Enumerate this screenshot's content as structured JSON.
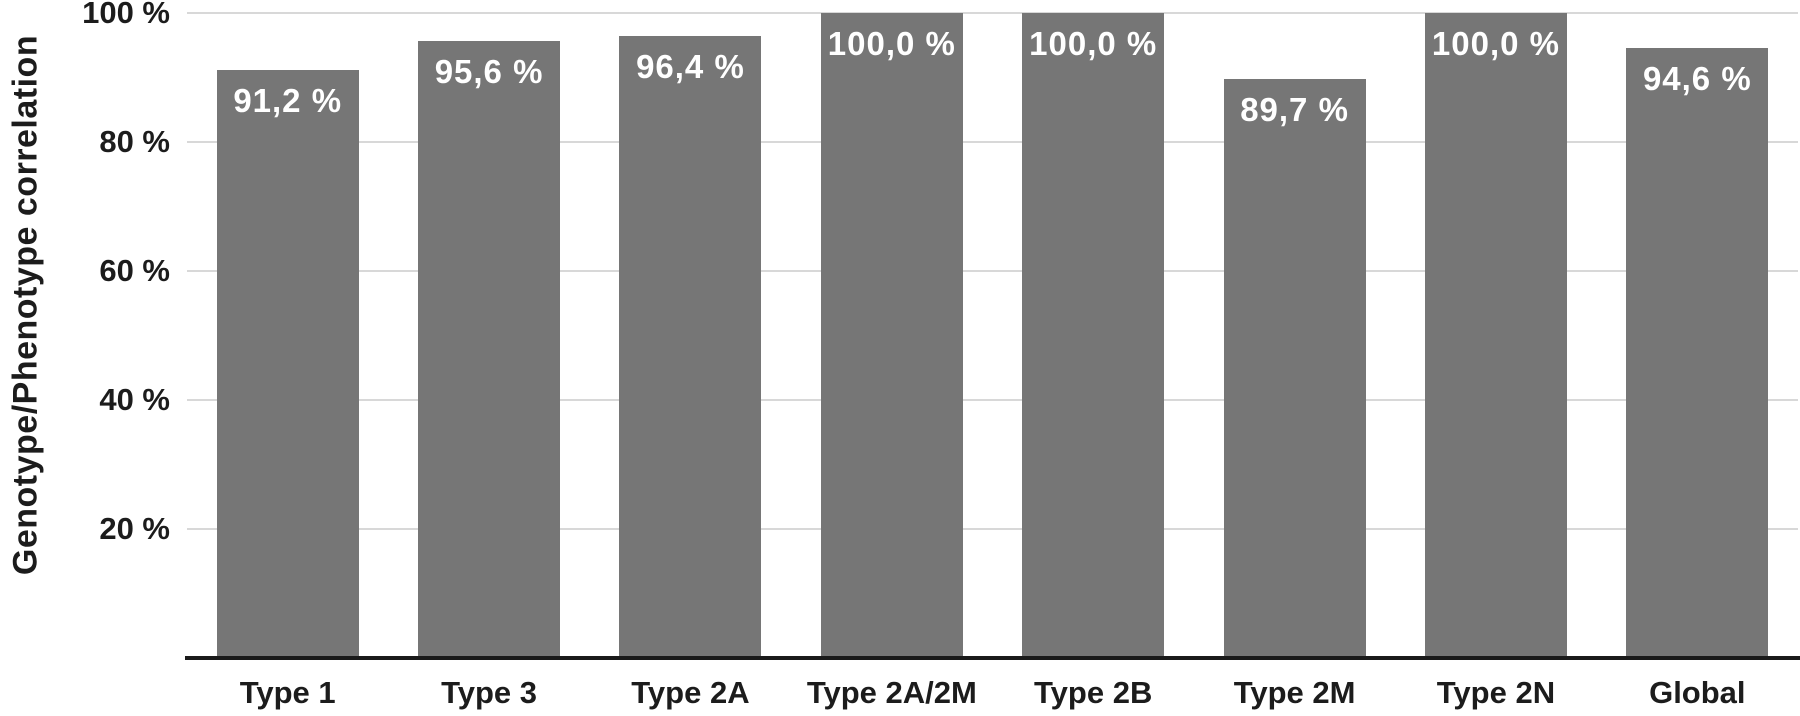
{
  "chart_data": {
    "type": "bar",
    "title": "",
    "categories": [
      "Type 1",
      "Type 3",
      "Type 2A",
      "Type 2A/2M",
      "Type 2B",
      "Type 2M",
      "Type 2N",
      "Global"
    ],
    "values": [
      91.2,
      95.6,
      96.4,
      100.0,
      100.0,
      89.7,
      100.0,
      94.6
    ],
    "value_labels": [
      "91,2 %",
      "95,6 %",
      "96,4 %",
      "100,0 %",
      "100,0 %",
      "89,7 %",
      "100,0 %",
      "94,6 %"
    ],
    "xlabel": "",
    "ylabel": "Genotype/Phenotype correlation",
    "ylim": [
      0,
      100
    ],
    "yticks": [
      20,
      40,
      60,
      80,
      100
    ],
    "ytick_labels": [
      "20 %",
      "40 %",
      "60 %",
      "80 %",
      "100 %"
    ],
    "grid": true,
    "legend": false,
    "colors": {
      "bar": "#767676",
      "value_label": "#ffffff",
      "gridline": "#d8d8d8",
      "axis_line": "#1a1a1a",
      "text": "#1c1c1c",
      "background": "#ffffff"
    }
  }
}
